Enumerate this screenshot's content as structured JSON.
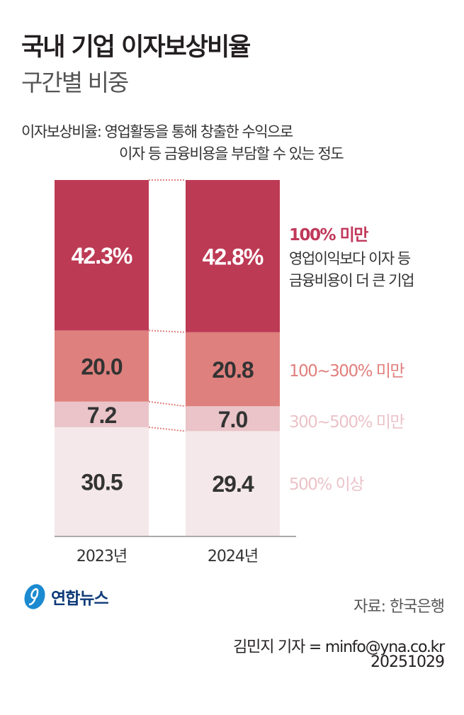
{
  "title": "국내 기업 이자보상비율",
  "subtitle": "구간별 비중",
  "description": [
    "이자보상비율: 영업활동을 통해 창출한 수익으로",
    "이자 등 금융비용을 부담할 수 있는 정도"
  ],
  "chart_data": {
    "type": "bar",
    "stacked": true,
    "categories": [
      "2023년",
      "2024년"
    ],
    "ylim": [
      0,
      100
    ],
    "series": [
      {
        "name": "500% 이상",
        "values": [
          30.5,
          29.4
        ],
        "labels": [
          "30.5",
          "29.4"
        ],
        "color": "#f5e8ea",
        "label_color": "#333333"
      },
      {
        "name": "300~500% 미만",
        "values": [
          7.2,
          7.0
        ],
        "labels": [
          "7.2",
          "7.0"
        ],
        "color": "#eac4c8",
        "label_color": "#333333",
        "legend_color": "#ebc3c8"
      },
      {
        "name": "100~300% 미만",
        "values": [
          20.0,
          20.8
        ],
        "labels": [
          "20.0",
          "20.8"
        ],
        "color": "#de807d",
        "label_color": "#333333",
        "legend_color": "#e07f7d"
      },
      {
        "name": "100% 미만",
        "values": [
          42.3,
          42.8
        ],
        "labels": [
          "42.3%",
          "42.8%"
        ],
        "color": "#bd3a55",
        "label_color": "#ffffff",
        "legend_color": "#c0385a",
        "note": [
          "영업이익보다 이자 등",
          "금융비용이 더 큰 기업"
        ]
      }
    ],
    "grid": false,
    "legend": "right"
  },
  "logo": {
    "text": "연합뉴스",
    "color": "#1b8ad0"
  },
  "source": "자료: 한국은행",
  "byline": "김민지 기자 = minfo@yna.co.kr",
  "date": "20251029"
}
